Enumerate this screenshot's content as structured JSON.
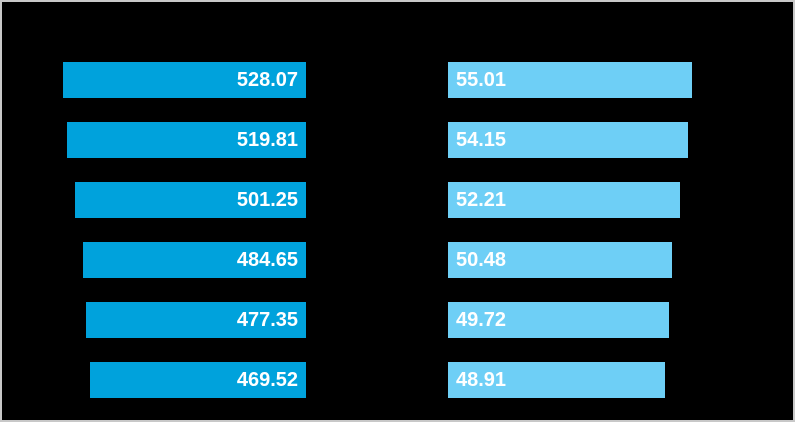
{
  "chart_data": {
    "type": "bar",
    "orientation": "horizontal",
    "title": "",
    "background_color": "#000000",
    "frame_border_color": "#c8c8c8",
    "value_label_color": "#ffffff",
    "grid": false,
    "legend": false,
    "rows": 6,
    "series": [
      {
        "name": "left-panel",
        "bar_color": "#00a2dc",
        "bar_anchor": "right",
        "value_label_align": "right-inside",
        "values": [
          528.07,
          519.81,
          501.25,
          484.65,
          477.35,
          469.52
        ],
        "labels": [
          "528.07",
          "519.81",
          "501.25",
          "484.65",
          "477.35",
          "469.52"
        ],
        "xlim": [
          0,
          528.07
        ]
      },
      {
        "name": "right-panel",
        "bar_color": "#6ecff6",
        "bar_anchor": "left",
        "value_label_align": "left-inside",
        "values": [
          55.01,
          54.15,
          52.21,
          50.48,
          49.72,
          48.91
        ],
        "labels": [
          "55.01",
          "54.15",
          "52.21",
          "50.48",
          "49.72",
          "48.91"
        ],
        "xlim": [
          0,
          55.01
        ]
      }
    ]
  }
}
